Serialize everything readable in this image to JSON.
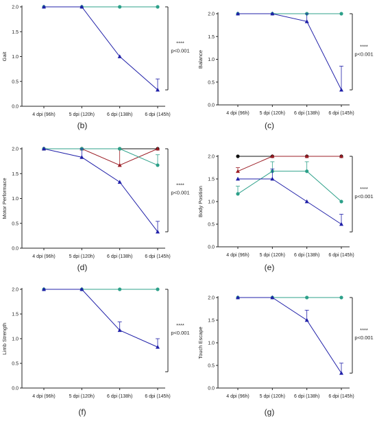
{
  "colors": {
    "blue": "#1f1fa8",
    "green": "#2ca089",
    "red": "#9b1c24",
    "black": "#111111",
    "axis": "#222222"
  },
  "chart_data": [
    {
      "type": "line",
      "panel_label": "(b)",
      "ylabel": "Gait",
      "categories": [
        "4 dpi (96h)",
        "5 dpi (120h)",
        "6 dpi (138h)",
        "6 dpi (145h)"
      ],
      "ylim": [
        0,
        2.0
      ],
      "yticks": [
        "0.0",
        "0.5",
        "1.0",
        "1.5",
        "2.0"
      ],
      "significance": {
        "stars": "****",
        "p": "p<0.001"
      },
      "series": [
        {
          "color": "green",
          "marker": "circle",
          "values": [
            2.0,
            2.0,
            2.0,
            2.0
          ],
          "err": [
            0,
            0,
            0,
            0
          ]
        },
        {
          "color": "blue",
          "marker": "triangle",
          "values": [
            2.0,
            2.0,
            1.0,
            0.33
          ],
          "err": [
            0,
            0,
            0,
            0.22
          ]
        }
      ]
    },
    {
      "type": "line",
      "panel_label": "(c)",
      "ylabel": "Balance",
      "categories": [
        "4 dpi (96h)",
        "5 dpi (120h)",
        "6 dpi (138h)",
        "6 dpi (145h)"
      ],
      "ylim": [
        0,
        2.0
      ],
      "yticks": [
        "0.0",
        "0.5",
        "1.0",
        "1.5",
        "2.0"
      ],
      "significance": {
        "stars": "****",
        "p": "p<0.001"
      },
      "series": [
        {
          "color": "green",
          "marker": "circle",
          "values": [
            2.0,
            2.0,
            2.0,
            2.0
          ],
          "err": [
            0,
            0,
            0,
            0
          ]
        },
        {
          "color": "blue",
          "marker": "triangle",
          "values": [
            2.0,
            2.0,
            1.83,
            0.33
          ],
          "err": [
            0,
            0,
            0.17,
            0.52
          ]
        }
      ]
    },
    {
      "type": "line",
      "panel_label": "(d)",
      "ylabel": "Motor Performace",
      "categories": [
        "4 dpi (96h)",
        "5 dpi (120h)",
        "6 dpi (138h)",
        "6 dpi (145h)"
      ],
      "ylim": [
        0,
        2.0
      ],
      "yticks": [
        "0.0",
        "0.5",
        "1.0",
        "1.5",
        "2.0"
      ],
      "significance": {
        "stars": "****",
        "p": "p<0.001"
      },
      "series": [
        {
          "color": "black",
          "marker": "circle",
          "values": [
            2.0,
            2.0,
            2.0,
            2.0
          ],
          "err": [
            0,
            0,
            0,
            0
          ]
        },
        {
          "color": "red",
          "marker": "triangle",
          "values": [
            2.0,
            2.0,
            1.67,
            2.0
          ],
          "err": [
            0,
            0,
            0.33,
            0
          ]
        },
        {
          "color": "green",
          "marker": "circle",
          "values": [
            2.0,
            2.0,
            2.0,
            1.67
          ],
          "err": [
            0,
            0,
            0,
            0.21
          ]
        },
        {
          "color": "blue",
          "marker": "triangle",
          "values": [
            2.0,
            1.83,
            1.33,
            0.33
          ],
          "err": [
            0,
            0.17,
            0,
            0.21
          ]
        }
      ]
    },
    {
      "type": "line",
      "panel_label": "(e)",
      "ylabel": "Body Position",
      "categories": [
        "4 dpi (96h)",
        "5 dpi (120h)",
        "6 dpi (138h)",
        "6 dpi (145h)"
      ],
      "ylim": [
        0,
        2.0
      ],
      "yticks": [
        "0.0",
        "0.5",
        "1.0",
        "1.5",
        "2.0"
      ],
      "significance": {
        "stars": "****",
        "p": "p<0.001"
      },
      "series": [
        {
          "color": "black",
          "marker": "circle",
          "values": [
            2.0,
            2.0,
            2.0,
            2.0
          ],
          "err": [
            0,
            0,
            0,
            0
          ]
        },
        {
          "color": "red",
          "marker": "triangle",
          "values": [
            1.67,
            2.0,
            2.0,
            2.0
          ],
          "err": [
            0.08,
            0,
            0,
            0
          ]
        },
        {
          "color": "green",
          "marker": "circle",
          "values": [
            1.17,
            1.67,
            1.67,
            1.0
          ],
          "err": [
            0.17,
            0.21,
            0.21,
            0
          ]
        },
        {
          "color": "blue",
          "marker": "triangle",
          "values": [
            1.5,
            1.5,
            1.0,
            0.5
          ],
          "err": [
            0,
            0.22,
            0,
            0.22
          ]
        }
      ]
    },
    {
      "type": "line",
      "panel_label": "(f)",
      "ylabel": "Limb Strength",
      "categories": [
        "4 dpi (96h)",
        "5 dpi (120h)",
        "6 dpi (138h)",
        "6 dpi (145h)"
      ],
      "ylim": [
        0,
        2.0
      ],
      "yticks": [
        "0.0",
        "0.5",
        "1.0",
        "1.5",
        "2.0"
      ],
      "significance": {
        "stars": "****",
        "p": "p<0.001"
      },
      "series": [
        {
          "color": "green",
          "marker": "circle",
          "values": [
            2.0,
            2.0,
            2.0,
            2.0
          ],
          "err": [
            0,
            0,
            0,
            0
          ]
        },
        {
          "color": "blue",
          "marker": "triangle",
          "values": [
            2.0,
            2.0,
            1.17,
            0.83
          ],
          "err": [
            0,
            0,
            0.17,
            0.17
          ]
        }
      ]
    },
    {
      "type": "line",
      "panel_label": "(g)",
      "ylabel": "Touch Escape",
      "categories": [
        "4 dpi (96h)",
        "5 dpi (120h)",
        "6 dpi (138h)",
        "6 dpi (145h)"
      ],
      "ylim": [
        0,
        2.0
      ],
      "yticks": [
        "0.0",
        "0.5",
        "1.0",
        "1.5",
        "2.0"
      ],
      "significance": {
        "stars": "****",
        "p": "p<0.001"
      },
      "series": [
        {
          "color": "green",
          "marker": "circle",
          "values": [
            2.0,
            2.0,
            2.0,
            2.0
          ],
          "err": [
            0,
            0,
            0,
            0
          ]
        },
        {
          "color": "blue",
          "marker": "triangle",
          "values": [
            2.0,
            2.0,
            1.5,
            0.33
          ],
          "err": [
            0,
            0,
            0.22,
            0.22
          ]
        }
      ]
    }
  ]
}
